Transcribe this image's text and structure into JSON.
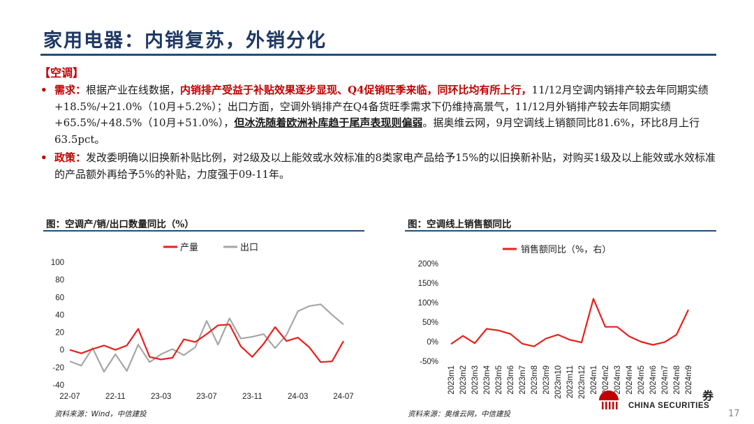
{
  "title": "家用电器：内销复苏，外销分化",
  "section": "【空调】",
  "paragraphs": {
    "p1": {
      "bullet": "•",
      "label": "需求：",
      "t1": "根据产业在线数据，",
      "highlight": "内销排产受益于补贴效果逐步显现、Q4促销旺季来临，同环比均有所上行，",
      "t2": "11/12月空调内销排产较去年同期实绩+18.5%/+21.0%（10月+5.2%）；出口方面，空调外销排产在Q4备货旺季需求下仍维持高景气，11/12月外销排产较去年同期实绩+65.5%/+48.5%（10月+51.0%），",
      "underline": "但冰洗随着欧洲补库趋于尾声表现则偏弱",
      "t3": "。据奥维云网，9月空调线上销额同比81.6%，环比8月上行63.5pct。"
    },
    "p2": {
      "bullet": "•",
      "label": "政策：",
      "t1": "发改委明确以旧换新补贴比例，对2级及以上能效或水效标准的8类家电产品给予15%的以旧换新补贴，对购买1级及以上能效或水效标准的产品额外再给予5%的补贴，力度强于09-11年。"
    }
  },
  "charts": {
    "left_title": "图：空调产/销/出口数量同比（%）",
    "left_source": "资料来源：Wind，中信建投",
    "right_title": "图：空调线上销售额同比",
    "right_source": "资料来源：奥维云网，中信建投"
  },
  "logo": {
    "text": "CHINA SECURITIES",
    "cn": "券"
  },
  "page_number": "17",
  "colors": {
    "accent": "#1f4e79",
    "red": "#e8211c",
    "gray": "#a6a6a6",
    "title": "#1f3864"
  },
  "chart_data": [
    {
      "type": "line",
      "title": "图：空调产/销/出口数量同比（%）",
      "ylim": [
        -40,
        100
      ],
      "yticks": [
        -40,
        -20,
        0,
        20,
        40,
        60,
        80,
        100
      ],
      "x_tick_labels": [
        "22-07",
        "22-11",
        "23-03",
        "23-07",
        "23-11",
        "24-03",
        "24-07"
      ],
      "x_tick_index": [
        0,
        4,
        8,
        12,
        16,
        20,
        24
      ],
      "legend": "top-center",
      "series": [
        {
          "name": "产量",
          "color": "#e8211c",
          "values": [
            0,
            -4,
            1,
            5,
            0,
            5,
            24,
            -8,
            -11,
            -9,
            12,
            9,
            18,
            28,
            29,
            4,
            -8,
            7,
            26,
            10,
            14,
            3,
            -14,
            -13,
            10
          ]
        },
        {
          "name": "出口",
          "color": "#a6a6a6",
          "values": [
            -13,
            -18,
            2,
            -25,
            -5,
            -24,
            6,
            -14,
            -5,
            1,
            -6,
            3,
            33,
            6,
            36,
            13,
            15,
            18,
            2,
            17,
            44,
            50,
            52,
            40,
            29
          ]
        }
      ]
    },
    {
      "type": "line",
      "title": "图：空调线上销售额同比",
      "ylim": [
        -50,
        200
      ],
      "yticks": [
        "-50%",
        "0%",
        "50%",
        "100%",
        "150%",
        "200%"
      ],
      "categories": [
        "2023m1",
        "2023m2",
        "2023m3",
        "2023m4",
        "2023m5",
        "2023m6",
        "2023m7",
        "2023m8",
        "2023m9",
        "2023m10",
        "2023m11",
        "2023m12",
        "2024m1",
        "2024m2",
        "2024m3",
        "2024m4",
        "2024m5",
        "2024m6",
        "2024m7",
        "2024m8",
        "2024m9"
      ],
      "legend": "top-left",
      "series": [
        {
          "name": "销售额同比（%，右）",
          "color": "#e8211c",
          "values": [
            -6,
            15,
            -4,
            33,
            29,
            20,
            -5,
            -12,
            8,
            18,
            5,
            -2,
            110,
            38,
            38,
            14,
            0,
            -8,
            -1,
            18,
            82
          ]
        }
      ]
    }
  ]
}
